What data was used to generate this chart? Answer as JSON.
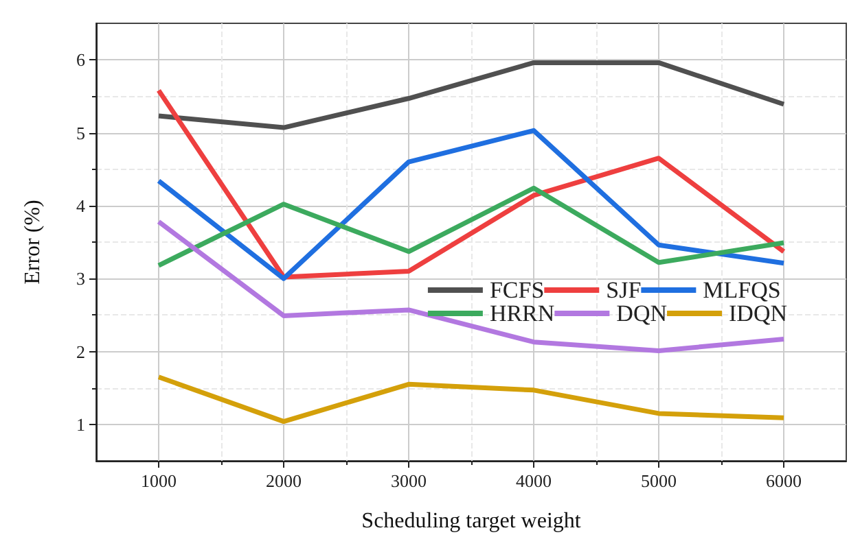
{
  "chart_data": {
    "type": "line",
    "xlabel": "Scheduling target weight",
    "ylabel": "Error (%)",
    "x": [
      1000,
      2000,
      3000,
      4000,
      5000,
      6000
    ],
    "xlim": [
      500,
      6500
    ],
    "xticks": [
      1000,
      2000,
      3000,
      4000,
      5000,
      6000
    ],
    "ylim": [
      0.5,
      6.5
    ],
    "yticks": [
      1,
      2,
      3,
      4,
      5,
      6
    ],
    "grid": true,
    "legend": "right",
    "marker": "none",
    "line_style": "solid",
    "series": [
      {
        "name": "FCFS",
        "color": "#505050",
        "values": [
          5.23,
          5.07,
          5.47,
          5.96,
          5.96,
          5.39
        ]
      },
      {
        "name": "SJF",
        "color": "#ee3f3f",
        "values": [
          5.58,
          3.02,
          3.1,
          4.14,
          4.65,
          3.37
        ]
      },
      {
        "name": "MLFQS",
        "color": "#1f6fe0",
        "values": [
          4.34,
          3.0,
          4.6,
          5.03,
          3.46,
          3.21
        ]
      },
      {
        "name": "HRRN",
        "color": "#3caa5e",
        "values": [
          3.18,
          4.02,
          3.37,
          4.24,
          3.22,
          3.49
        ]
      },
      {
        "name": "DQN",
        "color": "#b278e0",
        "values": [
          3.78,
          2.49,
          2.57,
          2.13,
          2.01,
          2.17
        ]
      },
      {
        "name": "IDQN",
        "color": "#d4a00a",
        "values": [
          1.65,
          1.04,
          1.55,
          1.47,
          1.15,
          1.09
        ]
      }
    ]
  }
}
